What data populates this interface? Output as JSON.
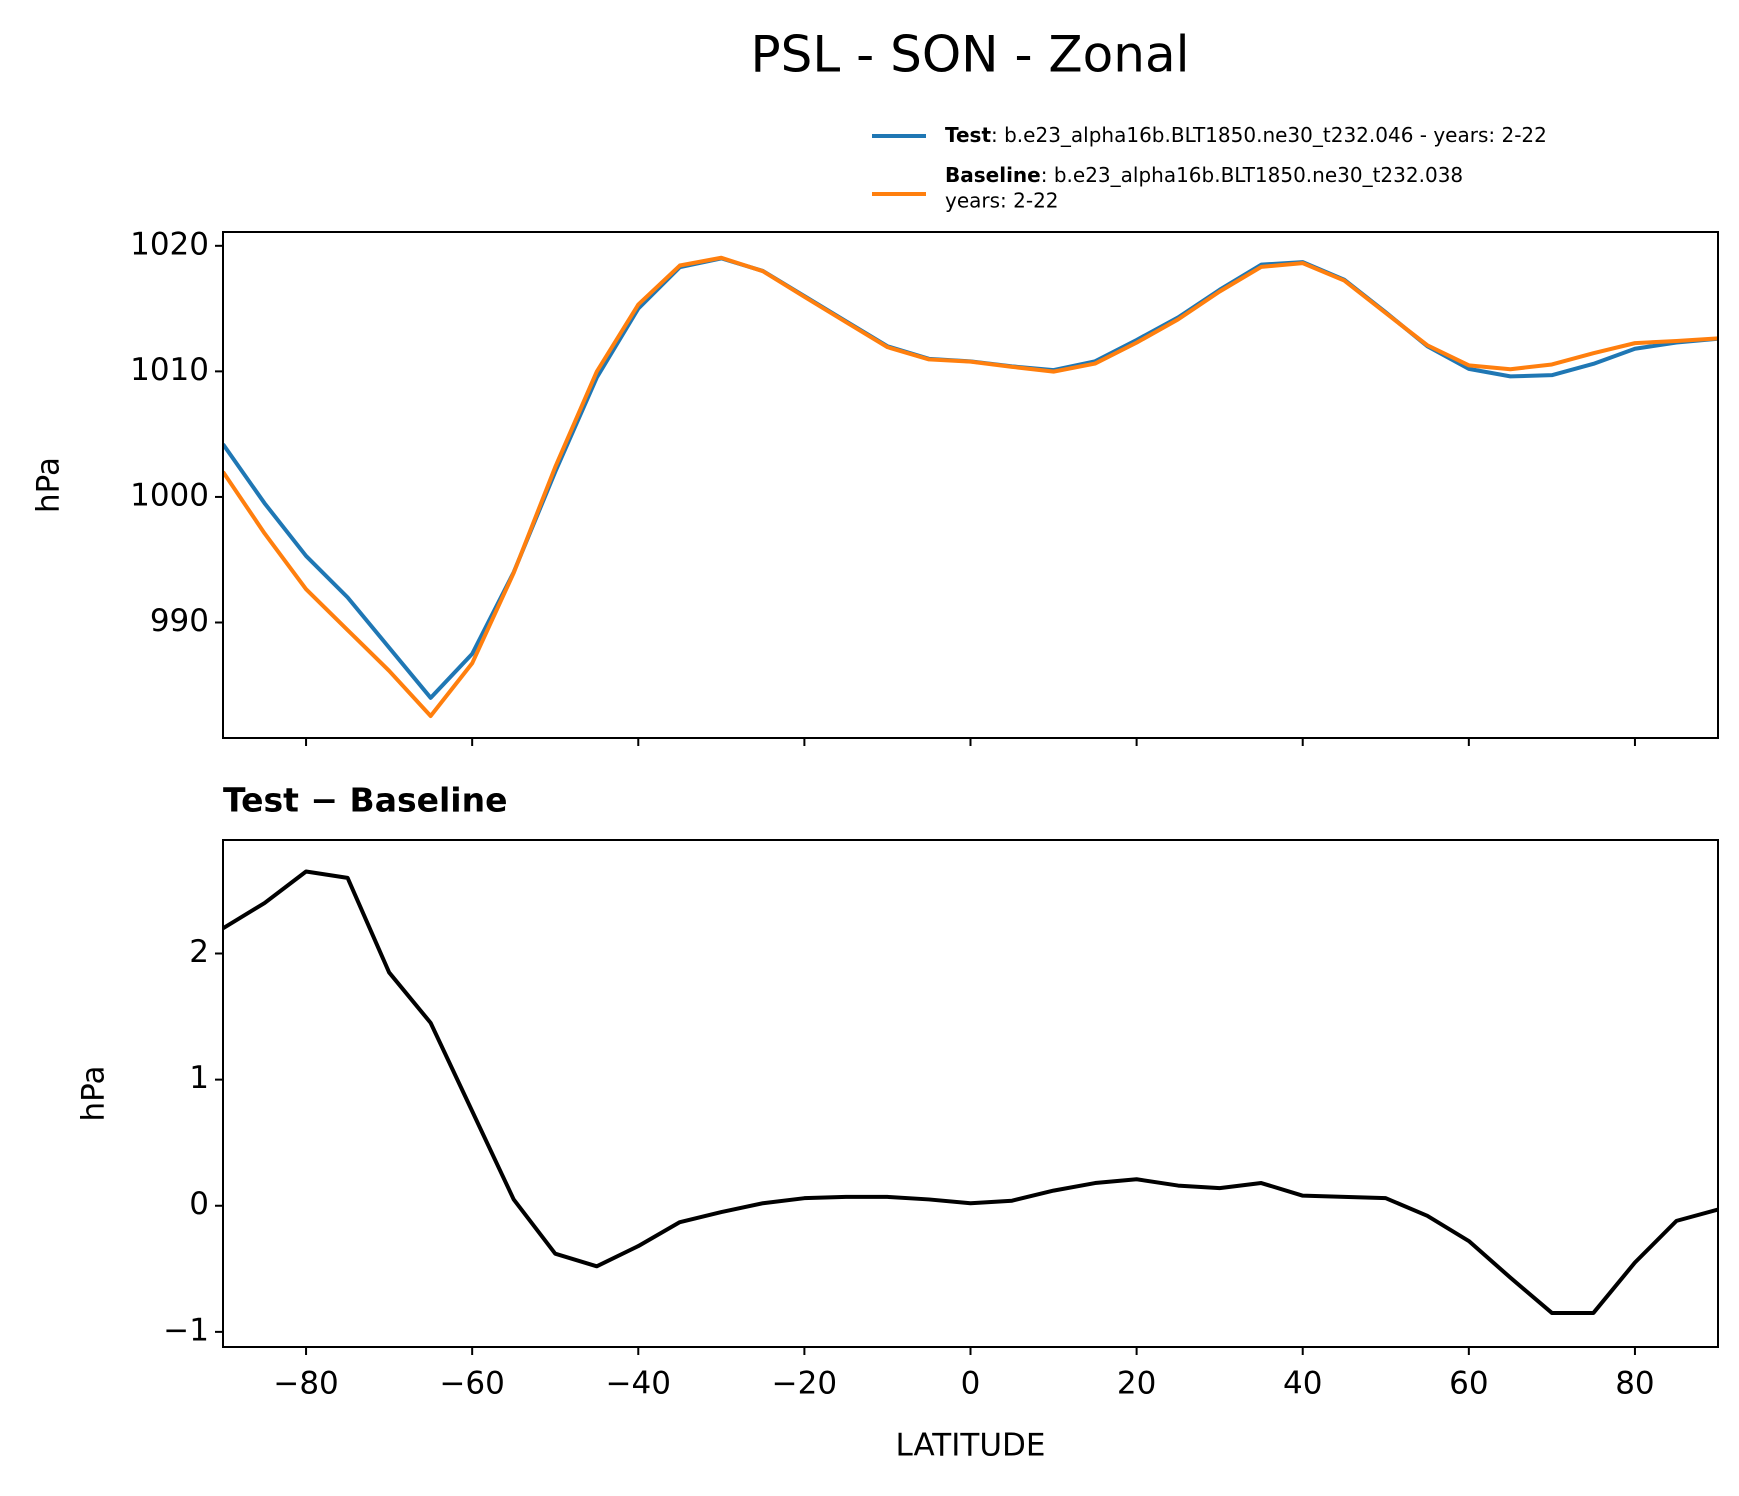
{
  "title": "PSL - SON - Zonal",
  "chart_data": [
    {
      "type": "line",
      "ylabel": "hPa",
      "x": [
        -90,
        -85,
        -80,
        -75,
        -70,
        -65,
        -60,
        -55,
        -50,
        -45,
        -40,
        -35,
        -30,
        -25,
        -20,
        -15,
        -10,
        -5,
        0,
        5,
        10,
        15,
        20,
        25,
        30,
        35,
        40,
        45,
        50,
        55,
        60,
        65,
        70,
        75,
        80,
        85,
        90
      ],
      "series": [
        {
          "name": "Test",
          "label": ": b.e23_alpha16b.BLT1850.ne30_t232.046 - years: 2-22",
          "color": "#1f77b4",
          "values": [
            1004.2,
            999.5,
            995.3,
            992,
            988,
            984,
            987.5,
            994,
            1002,
            1009.5,
            1015,
            1018.3,
            1019,
            1018,
            1016,
            1014,
            1012,
            1011,
            1010.8,
            1010.4,
            1010.1,
            1010.8,
            1012.5,
            1014.3,
            1016.5,
            1018.5,
            1018.7,
            1017.3,
            1014.7,
            1012,
            1010.2,
            1009.6,
            1009.7,
            1010.6,
            1011.8,
            1012.3,
            1012.6
          ]
        },
        {
          "name": "Baseline",
          "label": [
            ": b.e23_alpha16b.BLT1850.ne30_t232.038",
            "years: 2-22"
          ],
          "color": "#ff7f0e",
          "values": [
            1002.0,
            997.1,
            992.65,
            989.4,
            986.15,
            982.55,
            986.75,
            993.95,
            1002.38,
            1009.98,
            1015.32,
            1018.43,
            1019.05,
            1017.98,
            1015.94,
            1013.93,
            1011.93,
            1010.95,
            1010.78,
            1010.36,
            1009.98,
            1010.62,
            1012.29,
            1014.14,
            1016.36,
            1018.32,
            1018.62,
            1017.23,
            1014.64,
            1012.08,
            1010.48,
            1010.17,
            1010.55,
            1011.45,
            1012.25,
            1012.42,
            1012.63
          ]
        }
      ],
      "xlim": [
        -90,
        90
      ],
      "xticks": [
        -80,
        -60,
        -40,
        -20,
        0,
        20,
        40,
        60,
        80
      ],
      "ylim": [
        980.8,
        1021.1
      ],
      "yticks": [
        990,
        1000,
        1010,
        1020
      ]
    },
    {
      "type": "line",
      "title": "Test − Baseline",
      "ylabel": "hPa",
      "xlabel": "LATITUDE",
      "x": [
        -90,
        -85,
        -80,
        -75,
        -70,
        -65,
        -60,
        -55,
        -50,
        -45,
        -40,
        -35,
        -30,
        -25,
        -20,
        -15,
        -10,
        -5,
        0,
        5,
        10,
        15,
        20,
        25,
        30,
        35,
        40,
        45,
        50,
        55,
        60,
        65,
        70,
        75,
        80,
        85,
        90
      ],
      "series": [
        {
          "color": "#000000",
          "values": [
            2.2,
            2.4,
            2.65,
            2.6,
            1.85,
            1.45,
            0.75,
            0.05,
            -0.38,
            -0.48,
            -0.32,
            -0.13,
            -0.05,
            0.02,
            0.06,
            0.07,
            0.07,
            0.05,
            0.02,
            0.04,
            0.12,
            0.18,
            0.21,
            0.16,
            0.14,
            0.18,
            0.08,
            0.07,
            0.06,
            -0.08,
            -0.28,
            -0.57,
            -0.85,
            -0.85,
            -0.45,
            -0.12,
            -0.03
          ]
        }
      ],
      "xlim": [
        -90,
        90
      ],
      "xticks": [
        {
          "value": -80,
          "label": "−80"
        },
        {
          "value": -60,
          "label": "−60"
        },
        {
          "value": -40,
          "label": "−40"
        },
        {
          "value": -20,
          "label": "−20"
        },
        0,
        20,
        40,
        60,
        80
      ],
      "ylim": [
        -1.12,
        2.9
      ],
      "yticks": [
        {
          "value": -1,
          "label": "−1"
        },
        0,
        1,
        2
      ]
    }
  ]
}
